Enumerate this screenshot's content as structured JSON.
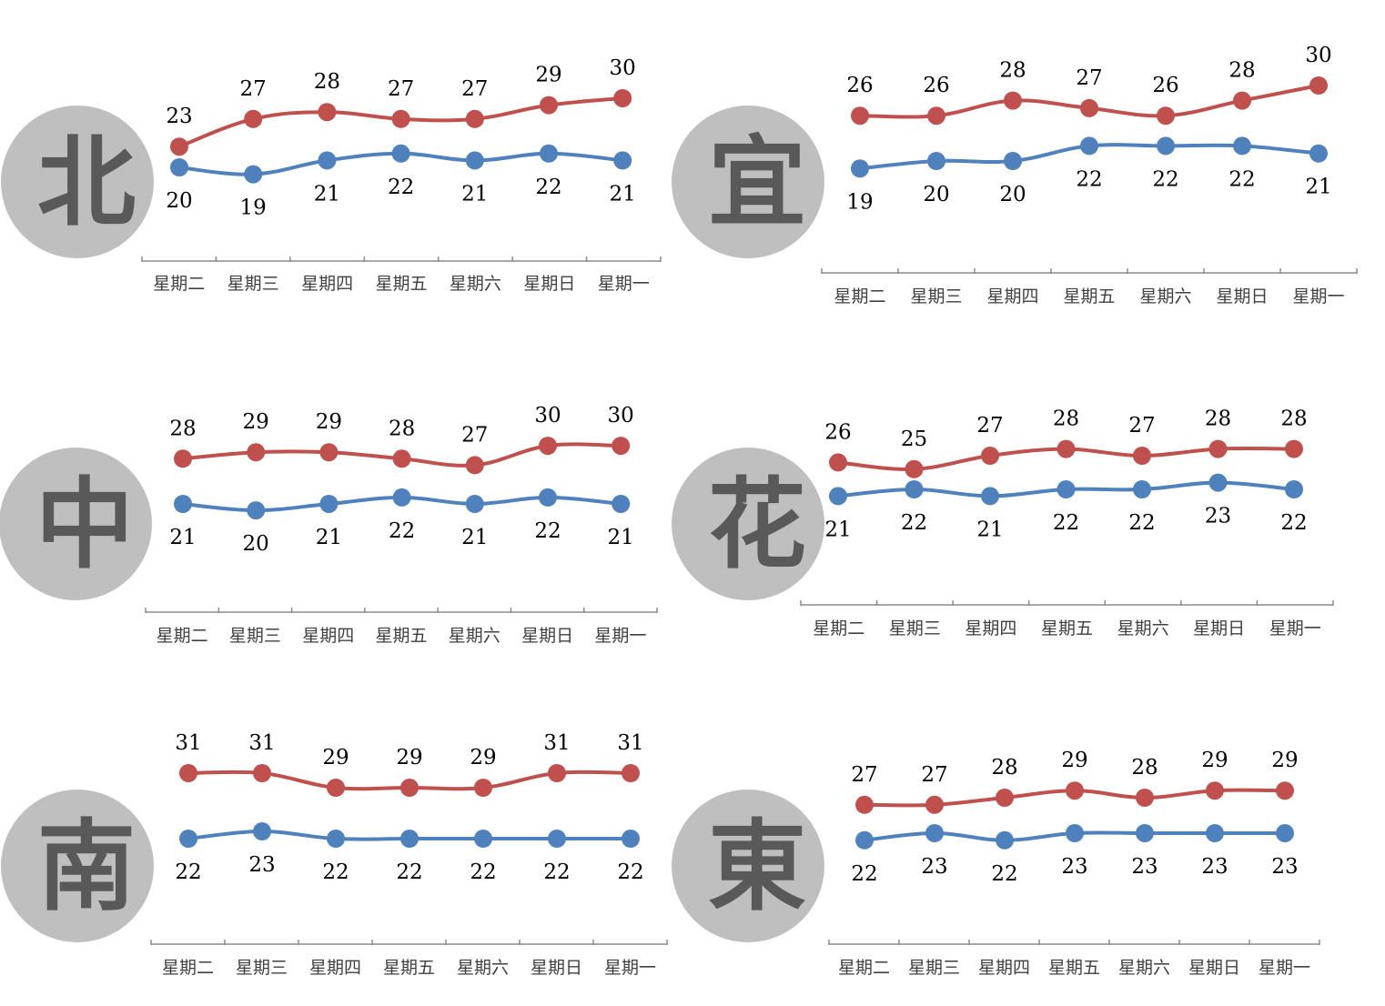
{
  "colors": {
    "high": "#c0504d",
    "low": "#4f81bd",
    "badge": "#bfbfbf",
    "badge_text": "#595959"
  },
  "chart_data": [
    {
      "type": "line",
      "region": "北",
      "categories": [
        "星期二",
        "星期三",
        "星期四",
        "星期五",
        "星期六",
        "星期日",
        "星期一"
      ],
      "series": [
        {
          "values": [
            23,
            27,
            28,
            27,
            27,
            29,
            30
          ]
        },
        {
          "values": [
            20,
            19,
            21,
            22,
            21,
            22,
            21
          ]
        }
      ]
    },
    {
      "type": "line",
      "region": "宜",
      "categories": [
        "星期二",
        "星期三",
        "星期四",
        "星期五",
        "星期六",
        "星期日",
        "星期一"
      ],
      "series": [
        {
          "values": [
            26,
            26,
            28,
            27,
            26,
            28,
            30
          ]
        },
        {
          "values": [
            19,
            20,
            20,
            22,
            22,
            22,
            21
          ]
        }
      ]
    },
    {
      "type": "line",
      "region": "中",
      "categories": [
        "星期二",
        "星期三",
        "星期四",
        "星期五",
        "星期六",
        "星期日",
        "星期一"
      ],
      "series": [
        {
          "values": [
            28,
            29,
            29,
            28,
            27,
            30,
            30
          ]
        },
        {
          "values": [
            21,
            20,
            21,
            22,
            21,
            22,
            21
          ]
        }
      ]
    },
    {
      "type": "line",
      "region": "花",
      "categories": [
        "星期二",
        "星期三",
        "星期四",
        "星期五",
        "星期六",
        "星期日",
        "星期一"
      ],
      "series": [
        {
          "values": [
            26,
            25,
            27,
            28,
            27,
            28,
            28
          ]
        },
        {
          "values": [
            21,
            22,
            21,
            22,
            22,
            23,
            22
          ]
        }
      ]
    },
    {
      "type": "line",
      "region": "南",
      "categories": [
        "星期二",
        "星期三",
        "星期四",
        "星期五",
        "星期六",
        "星期日",
        "星期一"
      ],
      "series": [
        {
          "values": [
            31,
            31,
            29,
            29,
            29,
            31,
            31
          ]
        },
        {
          "values": [
            22,
            23,
            22,
            22,
            22,
            22,
            22
          ]
        }
      ]
    },
    {
      "type": "line",
      "region": "東",
      "categories": [
        "星期二",
        "星期三",
        "星期四",
        "星期五",
        "星期六",
        "星期日",
        "星期一"
      ],
      "series": [
        {
          "values": [
            27,
            27,
            28,
            29,
            28,
            29,
            29
          ]
        },
        {
          "values": [
            22,
            23,
            22,
            23,
            23,
            23,
            23
          ]
        }
      ]
    }
  ]
}
